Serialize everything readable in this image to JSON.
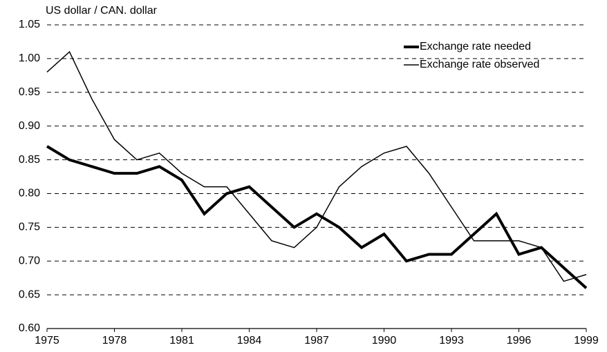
{
  "chart_data": {
    "type": "line",
    "ylabel": "US dollar / CAN. dollar",
    "x": [
      1975,
      1976,
      1977,
      1978,
      1979,
      1980,
      1981,
      1982,
      1983,
      1984,
      1985,
      1986,
      1987,
      1988,
      1989,
      1990,
      1991,
      1992,
      1993,
      1994,
      1995,
      1996,
      1997,
      1998,
      1999
    ],
    "series": [
      {
        "name": "Exchange rate needed",
        "color": "#000000",
        "linewidth": 4,
        "values": [
          0.87,
          0.85,
          0.84,
          0.83,
          0.83,
          0.84,
          0.82,
          0.77,
          0.8,
          0.81,
          0.78,
          0.75,
          0.77,
          0.75,
          0.72,
          0.74,
          0.7,
          0.71,
          0.71,
          0.74,
          0.77,
          0.71,
          0.72,
          0.69,
          0.66
        ]
      },
      {
        "name": "Exchange rate observed",
        "color": "#000000",
        "linewidth": 1.5,
        "values": [
          0.98,
          1.01,
          0.94,
          0.88,
          0.85,
          0.86,
          0.83,
          0.81,
          0.81,
          0.77,
          0.73,
          0.72,
          0.75,
          0.81,
          0.84,
          0.86,
          0.87,
          0.83,
          0.78,
          0.73,
          0.73,
          0.73,
          0.72,
          0.67,
          0.68
        ]
      }
    ],
    "xlim": [
      1975,
      1999
    ],
    "xticks": [
      1975,
      1978,
      1981,
      1984,
      1987,
      1990,
      1993,
      1996,
      1999
    ],
    "ylim": [
      0.6,
      1.05
    ],
    "yticks": [
      {
        "value": 0.6,
        "label": "0.60"
      },
      0.65,
      {
        "value": 0.7,
        "label": "0.70"
      },
      0.75,
      {
        "value": 0.8,
        "label": "0.80"
      },
      0.85,
      {
        "value": 0.9,
        "label": "0.90"
      },
      0.95,
      {
        "value": 1.0,
        "label": "1.00"
      },
      1.05
    ],
    "grid": true,
    "legend": "upper right"
  }
}
